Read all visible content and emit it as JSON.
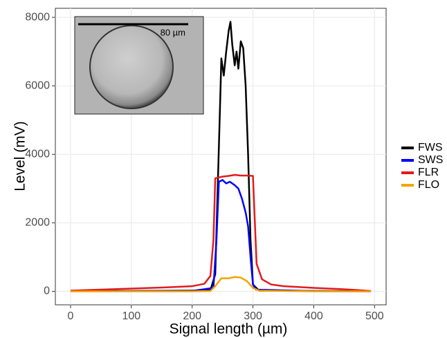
{
  "chart_data": {
    "type": "line",
    "xlabel": "Signal length (µm)",
    "ylabel": "Level (mV)",
    "annotation": "80 µm",
    "xlim": [
      -25,
      519
    ],
    "ylim": [
      -394,
      8264
    ],
    "xticks": [
      0,
      100,
      200,
      300,
      400,
      500
    ],
    "yticks": [
      0,
      2000,
      4000,
      6000,
      8000
    ],
    "grid": true,
    "legend": "right",
    "series": [
      {
        "name": "FWS",
        "color": "#000000",
        "x": [
          0,
          100,
          200,
          230,
          238,
          242,
          246,
          248,
          252,
          256,
          260,
          263,
          266,
          270,
          273,
          276,
          280,
          284,
          288,
          292,
          296,
          300,
          310,
          400,
          494
        ],
        "values": [
          10,
          10,
          20,
          30,
          500,
          3000,
          5500,
          6800,
          6300,
          7000,
          7600,
          7870,
          7200,
          6600,
          7000,
          6500,
          7300,
          7100,
          6000,
          4000,
          1500,
          200,
          20,
          10,
          5
        ]
      },
      {
        "name": "SWS",
        "color": "#0000ff",
        "x": [
          0,
          200,
          235,
          240,
          244,
          250,
          256,
          262,
          270,
          276,
          282,
          288,
          292,
          296,
          300,
          305,
          400,
          494
        ],
        "values": [
          5,
          10,
          100,
          1500,
          3200,
          3250,
          3150,
          3200,
          3100,
          3000,
          2700,
          2300,
          1900,
          1000,
          200,
          50,
          5,
          0
        ]
      },
      {
        "name": "FLR",
        "color": "#e31a1c",
        "x": [
          0,
          50,
          100,
          150,
          200,
          220,
          230,
          235,
          238,
          250,
          260,
          270,
          280,
          290,
          300,
          302,
          306,
          315,
          330,
          350,
          400,
          450,
          494
        ],
        "values": [
          20,
          50,
          80,
          110,
          150,
          220,
          450,
          1500,
          3300,
          3350,
          3370,
          3400,
          3380,
          3380,
          3370,
          2500,
          800,
          350,
          200,
          150,
          100,
          60,
          10
        ]
      },
      {
        "name": "FLO",
        "color": "#f5a300",
        "x": [
          0,
          200,
          230,
          238,
          248,
          260,
          270,
          280,
          290,
          300,
          310,
          400,
          494
        ],
        "values": [
          0,
          0,
          10,
          150,
          380,
          380,
          420,
          400,
          300,
          100,
          20,
          0,
          0
        ]
      }
    ]
  }
}
